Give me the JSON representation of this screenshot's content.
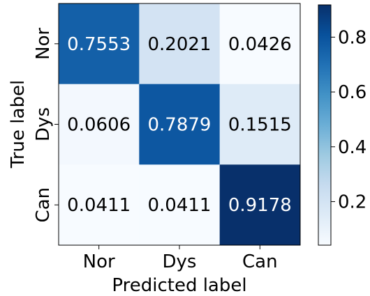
{
  "chart_data": {
    "type": "heatmap",
    "x_categories": [
      "Nor",
      "Dys",
      "Can"
    ],
    "y_categories": [
      "Nor",
      "Dys",
      "Can"
    ],
    "values": [
      [
        0.7553,
        0.2021,
        0.0426
      ],
      [
        0.0606,
        0.7879,
        0.1515
      ],
      [
        0.0411,
        0.0411,
        0.9178
      ]
    ],
    "cell_labels": [
      [
        "0.7553",
        "0.2021",
        "0.0426"
      ],
      [
        "0.0606",
        "0.7879",
        "0.1515"
      ],
      [
        "0.0411",
        "0.0411",
        "0.9178"
      ]
    ],
    "xlabel": "Predicted label",
    "ylabel": "True label",
    "colormap": "Blues",
    "colorbar": {
      "range": [
        0.0411,
        0.9178
      ],
      "ticks": [
        0.2,
        0.4,
        0.6,
        0.8
      ],
      "tick_labels": [
        "0.2",
        "0.4",
        "0.6",
        "0.8"
      ]
    }
  }
}
